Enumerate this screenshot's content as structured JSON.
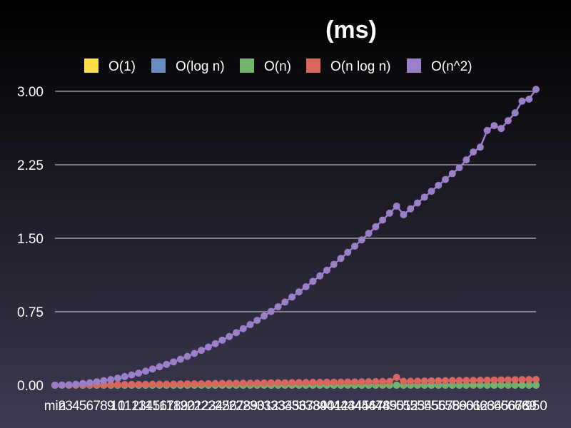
{
  "chart_data": {
    "type": "line",
    "title": "(ms)",
    "xlabel": "",
    "ylabel": "",
    "ylim": [
      0,
      3
    ],
    "yticks": [
      "0.00",
      "0.75",
      "1.50",
      "2.25",
      "3.00"
    ],
    "grid": true,
    "legend_position": "top",
    "x_start_label": "min",
    "x_end_label": "950",
    "x": [
      1,
      2,
      3,
      4,
      5,
      6,
      7,
      8,
      9,
      10,
      11,
      12,
      13,
      14,
      15,
      16,
      17,
      18,
      19,
      20,
      21,
      22,
      23,
      24,
      25,
      26,
      27,
      28,
      29,
      30,
      31,
      32,
      33,
      34,
      35,
      36,
      37,
      38,
      39,
      40,
      41,
      42,
      43,
      44,
      45,
      46,
      47,
      48,
      49,
      50,
      51,
      52,
      53,
      54,
      55,
      56,
      57,
      58,
      59,
      60,
      61,
      62,
      63,
      64,
      65,
      66,
      67,
      68,
      69,
      70
    ],
    "series": [
      {
        "name": "O(1)",
        "color": "#ffe04a",
        "values": [
          0.0,
          0.0,
          0.0,
          0.0,
          0.0,
          0.0,
          0.0,
          0.0,
          0.0,
          0.0,
          0.0,
          0.0,
          0.0,
          0.0,
          0.0,
          0.0,
          0.0,
          0.0,
          0.0,
          0.0,
          0.0,
          0.0,
          0.0,
          0.0,
          0.0,
          0.0,
          0.0,
          0.0,
          0.0,
          0.0,
          0.0,
          0.0,
          0.0,
          0.0,
          0.0,
          0.0,
          0.0,
          0.0,
          0.0,
          0.0,
          0.0,
          0.0,
          0.0,
          0.0,
          0.0,
          0.0,
          0.0,
          0.0,
          0.0,
          0.0,
          0.0,
          0.0,
          0.0,
          0.0,
          0.0,
          0.0,
          0.0,
          0.0,
          0.0,
          0.0,
          0.0,
          0.0,
          0.0,
          0.0,
          0.0,
          0.0,
          0.0,
          0.0,
          0.0,
          0.0
        ]
      },
      {
        "name": "O(log n)",
        "color": "#6b8dbf",
        "values": [
          0.0,
          0.0,
          0.0,
          0.0,
          0.0,
          0.0,
          0.0,
          0.0,
          0.0,
          0.0,
          0.0,
          0.0,
          0.0,
          0.0,
          0.0,
          0.0,
          0.0,
          0.0,
          0.0,
          0.0,
          0.0,
          0.0,
          0.0,
          0.0,
          0.0,
          0.0,
          0.0,
          0.0,
          0.0,
          0.0,
          0.0,
          0.0,
          0.0,
          0.0,
          0.0,
          0.0,
          0.0,
          0.0,
          0.0,
          0.0,
          0.0,
          0.0,
          0.0,
          0.0,
          0.0,
          0.0,
          0.0,
          0.0,
          0.0,
          0.0,
          0.0,
          0.0,
          0.0,
          0.0,
          0.0,
          0.0,
          0.0,
          0.0,
          0.0,
          0.0,
          0.0,
          0.0,
          0.0,
          0.0,
          0.0,
          0.0,
          0.0,
          0.0,
          0.0,
          0.0
        ]
      },
      {
        "name": "O(n)",
        "color": "#72b36b",
        "values": [
          0.0,
          0.0,
          0.0,
          0.0,
          0.0,
          0.0,
          0.0,
          0.0,
          0.0,
          0.0,
          0.0,
          0.0,
          0.0,
          0.0,
          0.0,
          0.0,
          0.0,
          0.0,
          0.0,
          0.0,
          0.0,
          0.0,
          0.0,
          0.0,
          0.0,
          0.0,
          0.0,
          0.0,
          0.0,
          0.0,
          0.0,
          0.0,
          0.0,
          0.0,
          0.0,
          0.0,
          0.0,
          0.0,
          0.0,
          0.0,
          0.0,
          0.0,
          0.0,
          0.0,
          0.0,
          0.0,
          0.0,
          0.0,
          0.0,
          0.0,
          0.0,
          0.0,
          0.0,
          0.0,
          0.0,
          0.0,
          0.0,
          0.0,
          0.0,
          0.0,
          0.0,
          0.0,
          0.0,
          0.0,
          0.0,
          0.0,
          0.0,
          0.0,
          0.0,
          0.0
        ]
      },
      {
        "name": "O(n log n)",
        "color": "#d9675e",
        "values": [
          0.0,
          0.001,
          0.001,
          0.002,
          0.003,
          0.003,
          0.004,
          0.005,
          0.005,
          0.006,
          0.007,
          0.008,
          0.008,
          0.009,
          0.01,
          0.011,
          0.011,
          0.012,
          0.013,
          0.014,
          0.015,
          0.015,
          0.016,
          0.017,
          0.018,
          0.019,
          0.019,
          0.02,
          0.021,
          0.022,
          0.023,
          0.024,
          0.025,
          0.025,
          0.026,
          0.027,
          0.028,
          0.029,
          0.03,
          0.031,
          0.031,
          0.032,
          0.033,
          0.034,
          0.035,
          0.036,
          0.037,
          0.038,
          0.039,
          0.08,
          0.04,
          0.041,
          0.042,
          0.043,
          0.044,
          0.045,
          0.046,
          0.047,
          0.048,
          0.049,
          0.05,
          0.051,
          0.052,
          0.053,
          0.054,
          0.055,
          0.056,
          0.057,
          0.058,
          0.059
        ]
      },
      {
        "name": "O(n^2)",
        "color": "#9b7fc9",
        "values": [
          0.0,
          0.002,
          0.005,
          0.01,
          0.017,
          0.025,
          0.035,
          0.046,
          0.058,
          0.072,
          0.088,
          0.105,
          0.123,
          0.143,
          0.165,
          0.188,
          0.212,
          0.238,
          0.265,
          0.294,
          0.324,
          0.356,
          0.389,
          0.424,
          0.46,
          0.497,
          0.536,
          0.577,
          0.619,
          0.662,
          0.707,
          0.753,
          0.8,
          0.849,
          0.9,
          0.952,
          1.005,
          1.06,
          1.116,
          1.174,
          1.233,
          1.294,
          1.356,
          1.419,
          1.484,
          1.55,
          1.617,
          1.686,
          1.757,
          1.828,
          1.74,
          1.8,
          1.86,
          1.92,
          1.98,
          2.04,
          2.1,
          2.16,
          2.22,
          2.3,
          2.38,
          2.43,
          2.6,
          2.65,
          2.62,
          2.7,
          2.78,
          2.9,
          2.92,
          3.02
        ]
      }
    ]
  }
}
